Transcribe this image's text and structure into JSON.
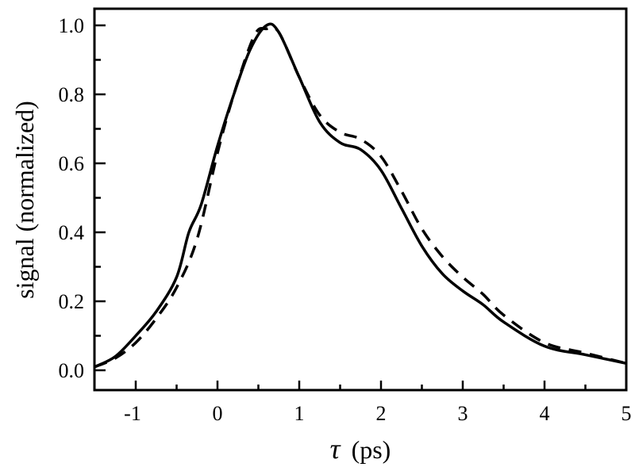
{
  "chart_data": {
    "type": "line",
    "title": "",
    "xlabel": "τ (ps)",
    "xlabel_symbol": "τ",
    "xlabel_unit": "(ps)",
    "ylabel": "signal (normalized)",
    "xlim": [
      -1.5,
      5
    ],
    "ylim": [
      -0.05,
      1.05
    ],
    "x_ticks": [
      -1,
      0,
      1,
      2,
      3,
      4,
      5
    ],
    "x_tick_labels": [
      "-1",
      "0",
      "1",
      "2",
      "3",
      "4",
      "5"
    ],
    "y_ticks": [
      0.0,
      0.2,
      0.4,
      0.6,
      0.8,
      1.0
    ],
    "y_tick_labels": [
      "0.0",
      "0.2",
      "0.4",
      "0.6",
      "0.8",
      "1.0"
    ],
    "grid": false,
    "legend": null,
    "series": [
      {
        "name": "solid",
        "style": "solid",
        "color": "#000000",
        "x": [
          -1.5,
          -1.25,
          -1.0,
          -0.75,
          -0.5,
          -0.35,
          -0.2,
          0.0,
          0.2,
          0.4,
          0.6,
          0.75,
          1.0,
          1.25,
          1.5,
          1.75,
          2.0,
          2.25,
          2.5,
          2.75,
          3.0,
          3.25,
          3.5,
          4.0,
          4.5,
          5.0
        ],
        "values": [
          0.01,
          0.04,
          0.1,
          0.17,
          0.27,
          0.4,
          0.48,
          0.65,
          0.8,
          0.93,
          1.0,
          0.98,
          0.85,
          0.72,
          0.66,
          0.64,
          0.58,
          0.47,
          0.36,
          0.28,
          0.23,
          0.19,
          0.14,
          0.07,
          0.045,
          0.02
        ]
      },
      {
        "name": "dashed",
        "style": "dashed",
        "color": "#000000",
        "x": [
          -1.5,
          -1.25,
          -1.0,
          -0.75,
          -0.5,
          -0.25,
          0.0,
          0.2,
          0.45,
          0.6,
          0.75,
          1.0,
          1.25,
          1.5,
          1.75,
          2.0,
          2.25,
          2.5,
          2.75,
          3.0,
          3.25,
          3.5,
          4.0,
          4.5,
          5.0
        ],
        "values": [
          0.01,
          0.035,
          0.08,
          0.15,
          0.24,
          0.38,
          0.63,
          0.8,
          0.97,
          0.99,
          0.98,
          0.85,
          0.74,
          0.69,
          0.67,
          0.62,
          0.52,
          0.41,
          0.33,
          0.27,
          0.22,
          0.16,
          0.08,
          0.05,
          0.02
        ]
      }
    ]
  }
}
